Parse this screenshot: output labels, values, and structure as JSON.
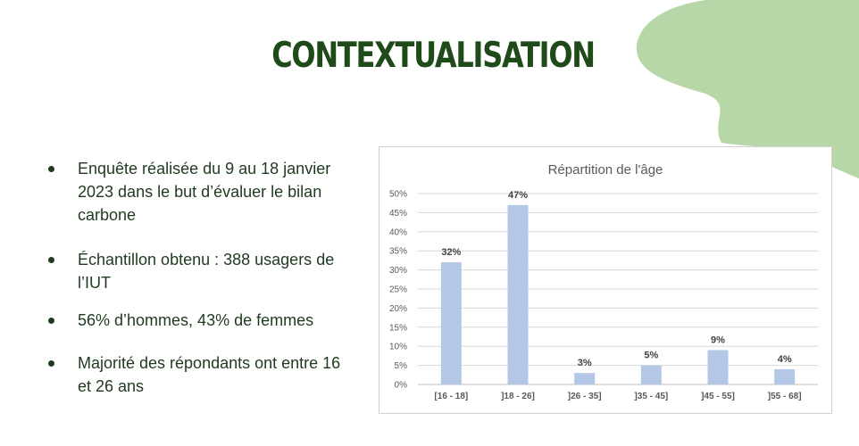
{
  "slide": {
    "title": "CONTEXTUALISATION",
    "bullets": [
      "Enquête réalisée du 9 au 18 janvier 2023 dans le but d’évaluer le bilan carbone",
      "Échantillon obtenu : 388 usagers de l’IUT",
      "56% d’hommes, 43% de femmes",
      "Majorité des répondants ont entre 16 et 26 ans"
    ]
  },
  "colors": {
    "title": "#1f4a1a",
    "bar": "#b4c7e7",
    "decor_blob": "#b7d7a8"
  },
  "chart_data": {
    "type": "bar",
    "title": "Répartition de l'âge",
    "categories": [
      "[16 - 18]",
      "]18 - 26]",
      "]26 - 35]",
      "]35 - 45]",
      "]45 - 55]",
      "]55 - 68]"
    ],
    "values": [
      32,
      47,
      3,
      5,
      9,
      4
    ],
    "data_labels": [
      "32%",
      "47%",
      "3%",
      "5%",
      "9%",
      "4%"
    ],
    "yticks": [
      "0%",
      "5%",
      "10%",
      "15%",
      "20%",
      "25%",
      "30%",
      "35%",
      "40%",
      "45%",
      "50%"
    ],
    "ylim": [
      0,
      50
    ],
    "grid": true,
    "legend": "none"
  }
}
